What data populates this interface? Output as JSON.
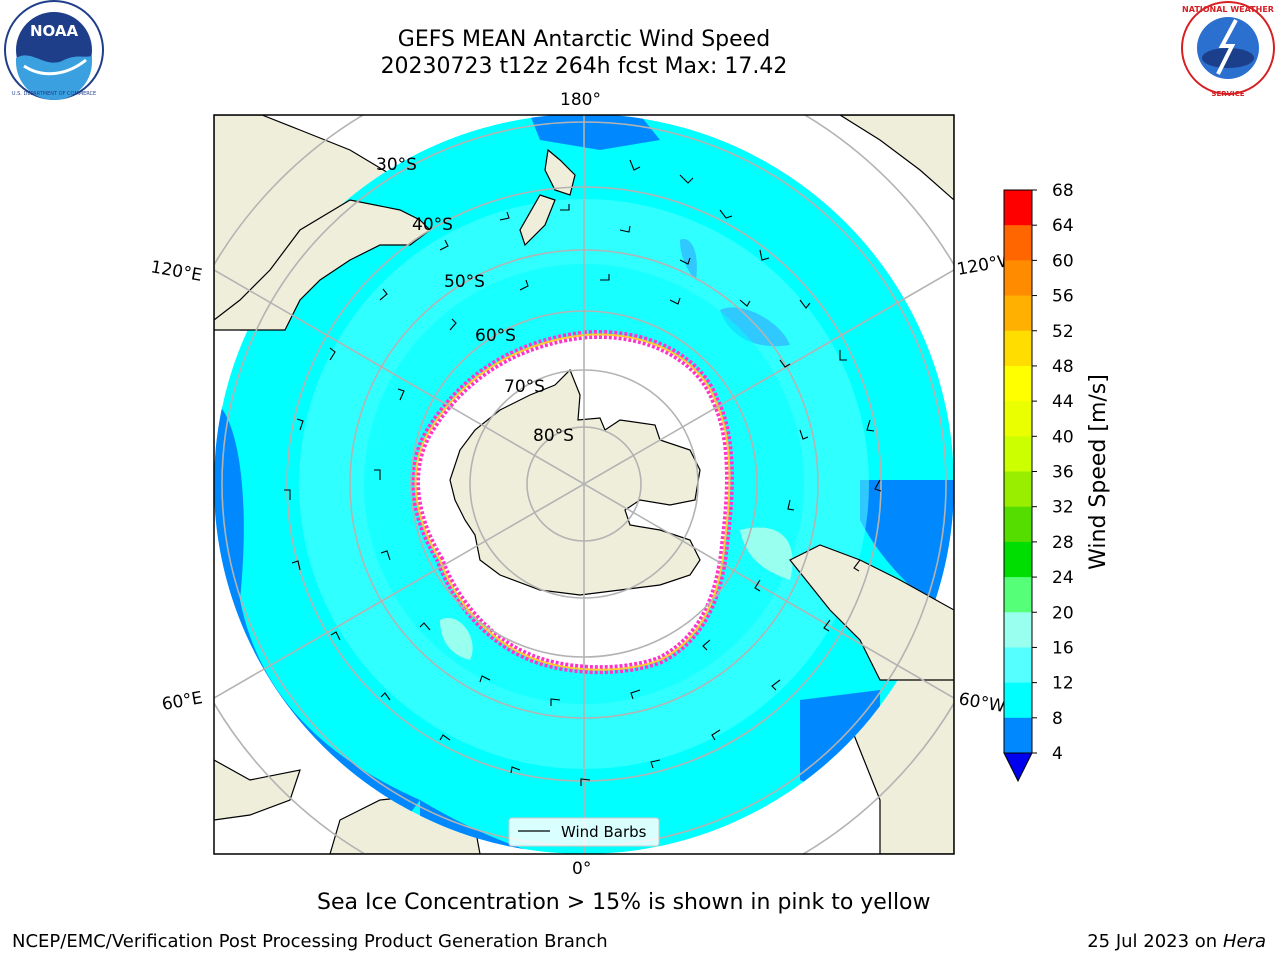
{
  "header": {
    "title_line1": "GEFS MEAN Antarctic Wind Speed",
    "title_line2": "20230723 t12z 264h fcst   Max: 17.42"
  },
  "map": {
    "projection": "south-polar-stereographic",
    "lat_labels": [
      "30°S",
      "40°S",
      "50°S",
      "60°S",
      "70°S",
      "80°S"
    ],
    "lon_labels": {
      "top": "180°",
      "bottom": "0°",
      "left_upper": "120°E",
      "left_lower": "60°E",
      "right_upper": "120°W",
      "right_lower": "60°W"
    },
    "legend_label": "Wind Barbs"
  },
  "colorbar": {
    "label": "Wind Speed [m/s]",
    "ticks": [
      "68",
      "64",
      "60",
      "56",
      "52",
      "48",
      "44",
      "40",
      "36",
      "32",
      "28",
      "24",
      "20",
      "16",
      "12",
      "8",
      "4"
    ],
    "colors": [
      "#ff0000",
      "#ff3300",
      "#ff6600",
      "#ff8c00",
      "#ffb000",
      "#ffdd00",
      "#ffff00",
      "#eaff00",
      "#ccff00",
      "#99ee00",
      "#55dd00",
      "#00dd00",
      "#55ff77",
      "#99ffee",
      "#55ffff",
      "#00ffff",
      "#0088ff"
    ],
    "extend_color": "#0000ee"
  },
  "caption": "Sea Ice Concentration > 15% is shown in pink to yellow",
  "footer": {
    "left": "NCEP/EMC/Verification Post Processing Product Generation Branch",
    "right_prefix": "25 Jul 2023 on ",
    "right_italic": "Hera"
  },
  "logos": {
    "left": "NOAA",
    "right": "NATIONAL WEATHER SERVICE"
  }
}
